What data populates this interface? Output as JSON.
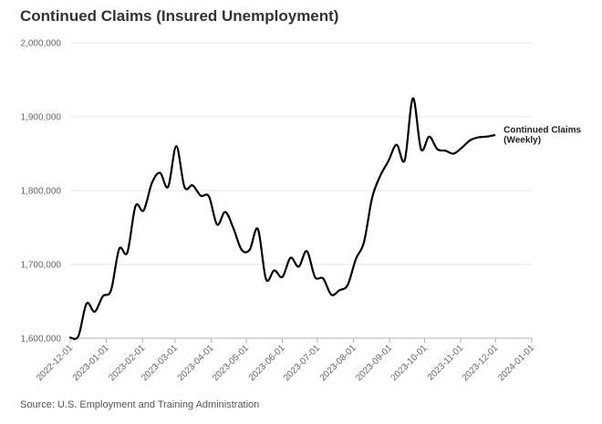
{
  "chart_data": {
    "type": "line",
    "title": "Continued Claims (Insured Unemployment)",
    "source": "Source: U.S. Employment and Training Administration",
    "xlabel": "",
    "ylabel": "",
    "ylim": [
      1600000,
      2000000
    ],
    "xlim": [
      "2022-12-01",
      "2024-01-01"
    ],
    "grid": true,
    "y_ticks": [
      {
        "value": 1600000,
        "label": "1,600,000"
      },
      {
        "value": 1700000,
        "label": "1,700,000"
      },
      {
        "value": 1800000,
        "label": "1,800,000"
      },
      {
        "value": 1900000,
        "label": "1,900,000"
      },
      {
        "value": 2000000,
        "label": "2,000,000"
      }
    ],
    "x_ticks": [
      "2022-12-01",
      "2023-01-01",
      "2023-02-01",
      "2023-03-01",
      "2023-04-01",
      "2023-05-01",
      "2023-06-01",
      "2023-07-01",
      "2023-08-01",
      "2023-09-01",
      "2023-10-01",
      "2023-11-01",
      "2023-12-01",
      "2024-01-01"
    ],
    "series": [
      {
        "name": "Continued Claims (Weekly)",
        "name_lines": [
          "Continued Claims",
          "(Weekly)"
        ],
        "color": "#000000",
        "x": [
          "2022-12-01",
          "2022-12-08",
          "2022-12-15",
          "2022-12-22",
          "2022-12-29",
          "2023-01-05",
          "2023-01-12",
          "2023-01-19",
          "2023-01-26",
          "2023-02-02",
          "2023-02-09",
          "2023-02-16",
          "2023-02-23",
          "2023-03-02",
          "2023-03-09",
          "2023-03-16",
          "2023-03-23",
          "2023-03-30",
          "2023-04-06",
          "2023-04-13",
          "2023-04-20",
          "2023-04-27",
          "2023-05-04",
          "2023-05-11",
          "2023-05-18",
          "2023-05-25",
          "2023-06-01",
          "2023-06-08",
          "2023-06-15",
          "2023-06-22",
          "2023-06-29",
          "2023-07-06",
          "2023-07-13",
          "2023-07-20",
          "2023-07-27",
          "2023-08-03",
          "2023-08-10",
          "2023-08-17",
          "2023-08-24",
          "2023-08-31",
          "2023-09-07",
          "2023-09-14",
          "2023-09-21",
          "2023-09-28",
          "2023-10-05",
          "2023-10-12",
          "2023-10-19",
          "2023-10-26",
          "2023-11-02",
          "2023-11-09",
          "2023-11-16",
          "2023-11-23",
          "2023-11-30"
        ],
        "values": [
          1601000,
          1603000,
          1647000,
          1636000,
          1657000,
          1665000,
          1721000,
          1716000,
          1779000,
          1773000,
          1810000,
          1824000,
          1805000,
          1860000,
          1805000,
          1807000,
          1793000,
          1792000,
          1754000,
          1771000,
          1749000,
          1720000,
          1720000,
          1748000,
          1680000,
          1692000,
          1683000,
          1709000,
          1697000,
          1718000,
          1683000,
          1681000,
          1659000,
          1665000,
          1672000,
          1707000,
          1730000,
          1790000,
          1820000,
          1840000,
          1862000,
          1841000,
          1925000,
          1856000,
          1873000,
          1856000,
          1854000,
          1850000,
          1858000,
          1868000,
          1872000,
          1873000,
          1875000
        ]
      }
    ]
  }
}
